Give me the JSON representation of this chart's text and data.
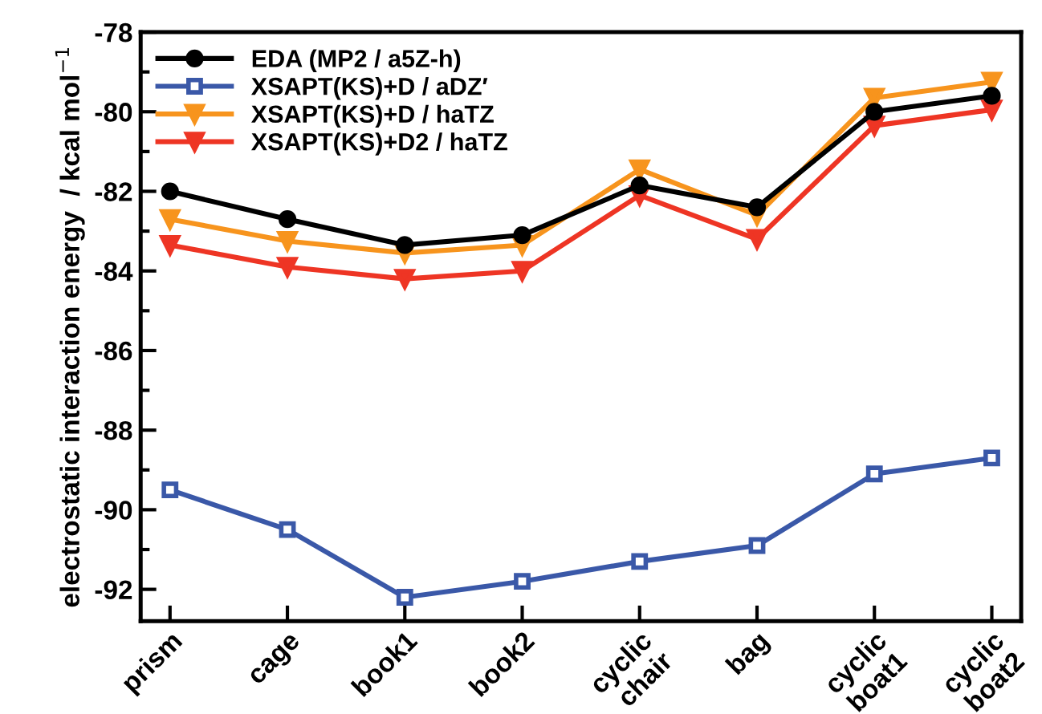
{
  "chart_data": {
    "type": "line",
    "categories": [
      "prism",
      "cage",
      "book1",
      "book2",
      "cyclic\nchair",
      "bag",
      "cyclic\nboat1",
      "cyclic\nboat2"
    ],
    "series": [
      {
        "name": "EDA (MP2 / a5Z-h)",
        "color": "#000000",
        "marker": "circle",
        "values": [
          -82.0,
          -82.7,
          -83.35,
          -83.1,
          -81.85,
          -82.4,
          -80.0,
          -79.6
        ]
      },
      {
        "name": "XSAPT(KS)+D / aDZ′",
        "color": "#3a58a8",
        "marker": "square",
        "values": [
          -89.5,
          -90.5,
          -92.2,
          -91.8,
          -91.3,
          -90.9,
          -89.1,
          -88.7
        ]
      },
      {
        "name": "XSAPT(KS)+D / haTZ",
        "color": "#f7941d",
        "marker": "triangle",
        "values": [
          -82.7,
          -83.25,
          -83.55,
          -83.35,
          -81.45,
          -82.6,
          -79.65,
          -79.25
        ]
      },
      {
        "name": "XSAPT(KS)+D2 / haTZ",
        "color": "#ee3524",
        "marker": "triangle",
        "values": [
          -83.35,
          -83.9,
          -84.2,
          -84.0,
          -82.1,
          -83.2,
          -80.35,
          -79.95
        ]
      }
    ],
    "ylabel": "electrostatic interaction energy  / kcal mol$^{−1}$",
    "ylim": [
      -92.8,
      -78
    ],
    "yticks": [
      -92,
      -90,
      -88,
      -86,
      -84,
      -82,
      -80,
      -78
    ],
    "legend": "top left",
    "grid": false,
    "line_style": "solid"
  }
}
